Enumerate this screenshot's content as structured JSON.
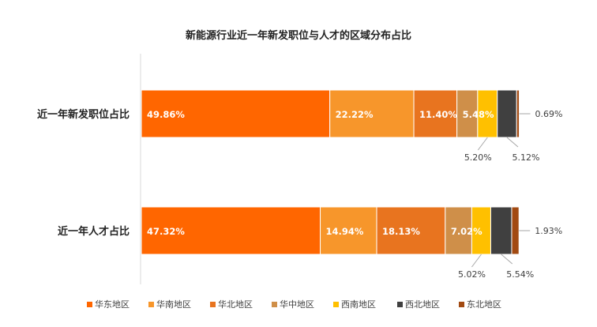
{
  "chart_data": {
    "type": "bar",
    "orientation": "horizontal",
    "stacked": true,
    "title": "新能源行业近一年新发职位与人才的区域分布占比",
    "categories": [
      "近一年新发职位占比",
      "近一年人才占比"
    ],
    "series": [
      {
        "name": "华东地区",
        "color": "#FF6600",
        "values": [
          49.86,
          47.32
        ],
        "labels": [
          "49.86%",
          "47.32%"
        ]
      },
      {
        "name": "华南地区",
        "color": "#F7962B",
        "values": [
          22.22,
          14.94
        ],
        "labels": [
          "22.22%",
          "14.94%"
        ]
      },
      {
        "name": "华北地区",
        "color": "#E8741F",
        "values": [
          11.4,
          18.13
        ],
        "labels": [
          "11.40%",
          "18.13%"
        ]
      },
      {
        "name": "华中地区",
        "color": "#CF8F49",
        "values": [
          5.48,
          7.02
        ],
        "labels": [
          "5.48%",
          "7.02%"
        ]
      },
      {
        "name": "西南地区",
        "color": "#FFC000",
        "values": [
          5.2,
          5.02
        ],
        "labels": [
          "5.20%",
          "5.02%"
        ]
      },
      {
        "name": "西北地区",
        "color": "#404040",
        "values": [
          5.12,
          5.54
        ],
        "labels": [
          "5.12%",
          "5.54%"
        ]
      },
      {
        "name": "东北地区",
        "color": "#A24A12",
        "values": [
          0.69,
          1.93
        ],
        "labels": [
          "0.69%",
          "1.93%"
        ]
      }
    ],
    "xlim": [
      0,
      100
    ],
    "grid": false,
    "legend": "bottom"
  }
}
